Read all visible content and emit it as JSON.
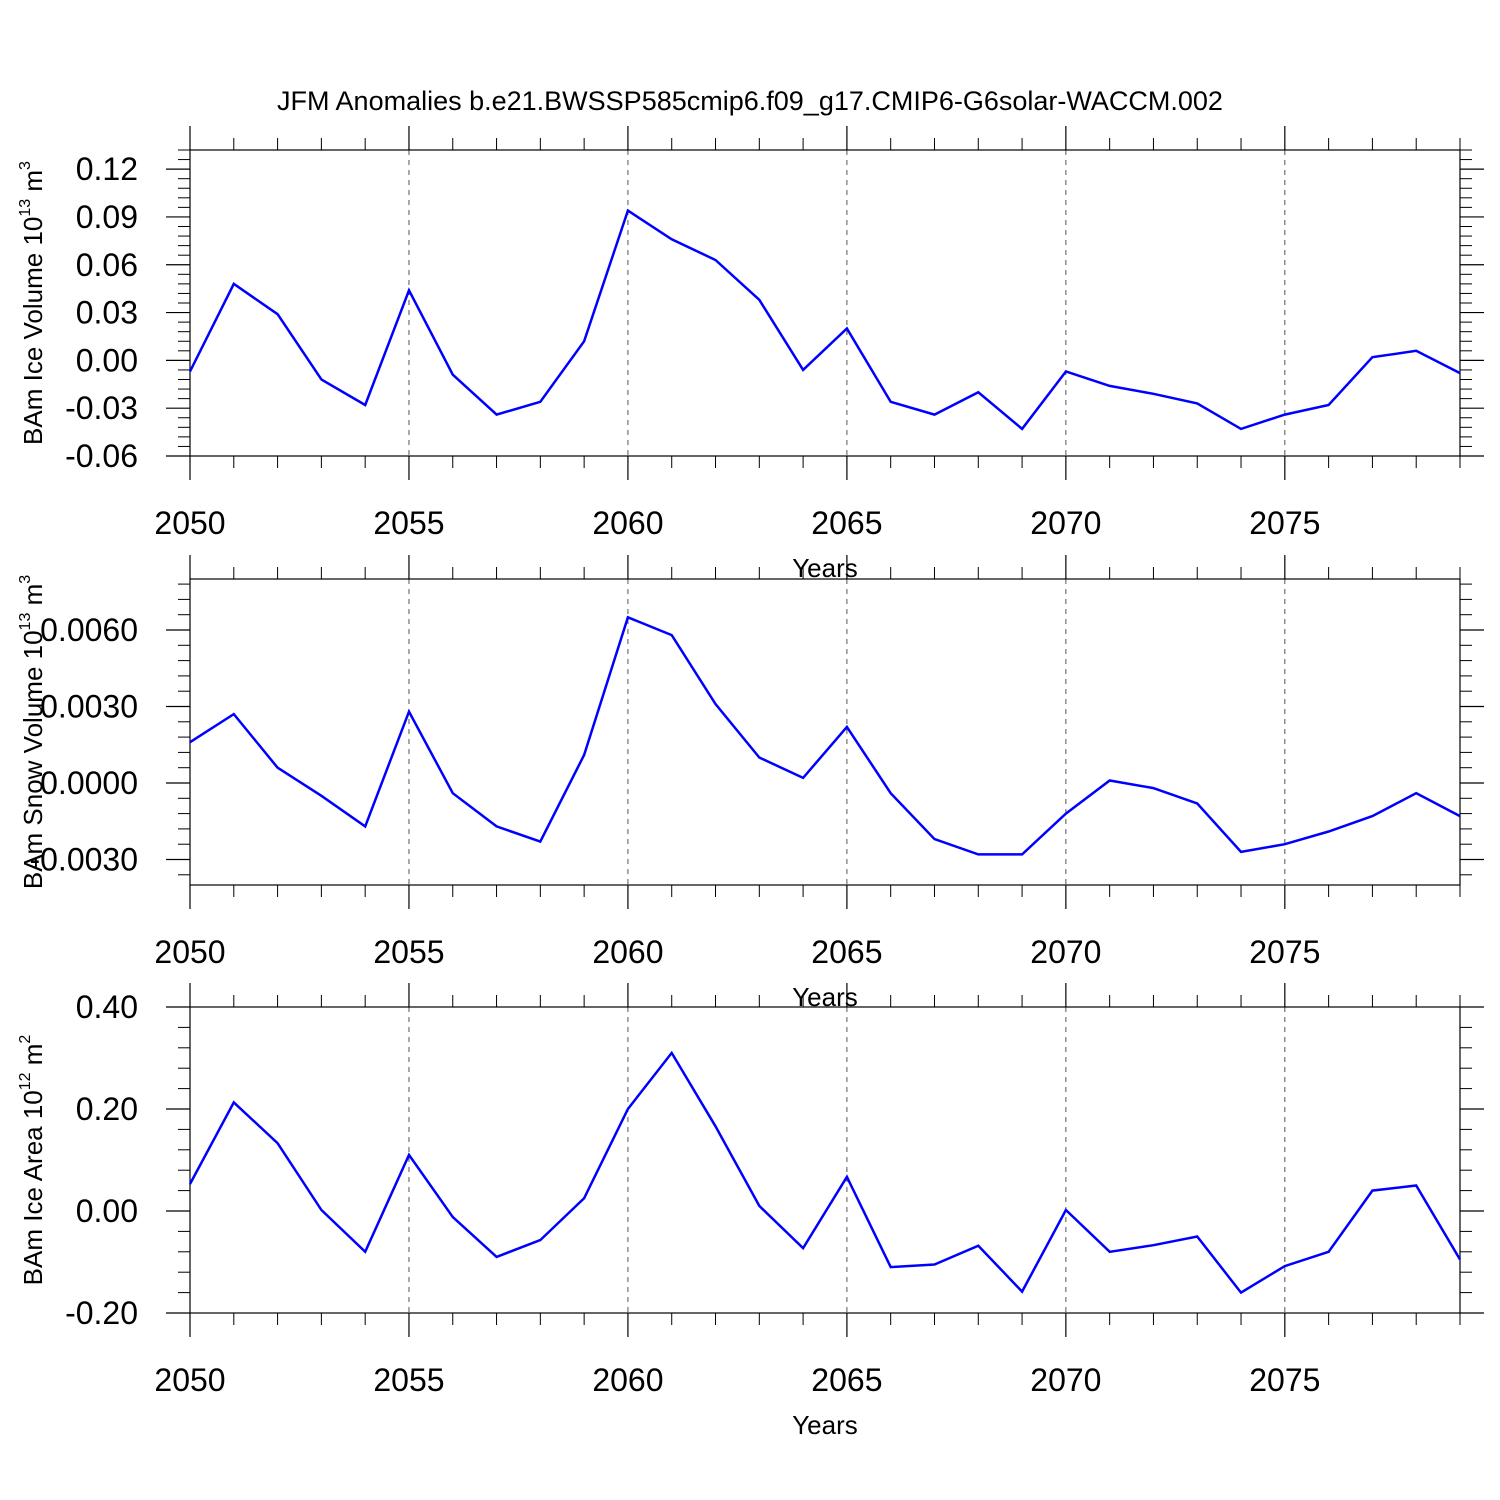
{
  "title": "JFM Anomalies b.e21.BWSSP585cmip6.f09_g17.CMIP6-G6solar-WACCM.002",
  "line_color": "#0000ff",
  "chart_data": [
    {
      "type": "line",
      "name": "ice-volume",
      "ylabel": {
        "main": "BAm Ice Volume 10",
        "exp": "13",
        "unit": " m",
        "unit_exp": "3"
      },
      "xlabel": "Years",
      "xlim": [
        2050,
        2079
      ],
      "xticks": [
        2050,
        2055,
        2060,
        2065,
        2070,
        2075
      ],
      "xtick_labels": [
        "2050",
        "2055",
        "2060",
        "2065",
        "2070",
        "2075"
      ],
      "ylim": [
        -0.06,
        0.132
      ],
      "yticks": [
        -0.06,
        -0.03,
        0.0,
        0.03,
        0.06,
        0.09,
        0.12
      ],
      "ytick_labels": [
        "-0.06",
        "-0.03",
        "0.00",
        "0.03",
        "0.06",
        "0.09",
        "0.12"
      ],
      "x": [
        2050,
        2051,
        2052,
        2053,
        2054,
        2055,
        2056,
        2057,
        2058,
        2059,
        2060,
        2061,
        2062,
        2063,
        2064,
        2065,
        2066,
        2067,
        2068,
        2069,
        2070,
        2071,
        2072,
        2073,
        2074,
        2075,
        2076,
        2077,
        2078,
        2079
      ],
      "values": [
        -0.007,
        0.048,
        0.029,
        -0.012,
        -0.028,
        0.044,
        -0.009,
        -0.034,
        -0.026,
        0.012,
        0.094,
        0.076,
        0.063,
        0.038,
        -0.006,
        0.02,
        -0.026,
        -0.034,
        -0.02,
        -0.043,
        -0.007,
        -0.016,
        -0.021,
        -0.027,
        -0.043,
        -0.034,
        -0.028,
        0.002,
        0.006,
        -0.008
      ]
    },
    {
      "type": "line",
      "name": "snow-volume",
      "ylabel": {
        "main": "BAm Snow Volume 10",
        "exp": "13",
        "unit": " m",
        "unit_exp": "3"
      },
      "xlabel": "Years",
      "xlim": [
        2050,
        2079
      ],
      "xticks": [
        2050,
        2055,
        2060,
        2065,
        2070,
        2075
      ],
      "xtick_labels": [
        "2050",
        "2055",
        "2060",
        "2065",
        "2070",
        "2075"
      ],
      "ylim": [
        -0.004,
        0.008
      ],
      "yticks": [
        -0.003,
        0.0,
        0.003,
        0.006
      ],
      "ytick_labels": [
        "-0.0030",
        "0.0000",
        "0.0030",
        "0.0060"
      ],
      "x": [
        2050,
        2051,
        2052,
        2053,
        2054,
        2055,
        2056,
        2057,
        2058,
        2059,
        2060,
        2061,
        2062,
        2063,
        2064,
        2065,
        2066,
        2067,
        2068,
        2069,
        2070,
        2071,
        2072,
        2073,
        2074,
        2075,
        2076,
        2077,
        2078,
        2079
      ],
      "values": [
        0.0016,
        0.0027,
        0.0006,
        -0.0005,
        -0.0017,
        0.0028,
        -0.0004,
        -0.0017,
        -0.0023,
        0.0011,
        0.0065,
        0.0058,
        0.0031,
        0.001,
        0.0002,
        0.0022,
        -0.0004,
        -0.0022,
        -0.0028,
        -0.0028,
        -0.0012,
        0.0001,
        -0.0002,
        -0.0008,
        -0.0027,
        -0.0024,
        -0.0019,
        -0.0013,
        -0.0004,
        -0.0013
      ]
    },
    {
      "type": "line",
      "name": "ice-area",
      "ylabel": {
        "main": "BAm Ice Area 10",
        "exp": "12",
        "unit": " m",
        "unit_exp": "2"
      },
      "xlabel": "Years",
      "xlim": [
        2050,
        2079
      ],
      "xticks": [
        2050,
        2055,
        2060,
        2065,
        2070,
        2075
      ],
      "xtick_labels": [
        "2050",
        "2055",
        "2060",
        "2065",
        "2070",
        "2075"
      ],
      "ylim": [
        -0.2,
        0.4
      ],
      "yticks": [
        -0.2,
        0.0,
        0.2,
        0.4
      ],
      "ytick_labels": [
        "-0.20",
        "0.00",
        "0.20",
        "0.40"
      ],
      "x": [
        2050,
        2051,
        2052,
        2053,
        2054,
        2055,
        2056,
        2057,
        2058,
        2059,
        2060,
        2061,
        2062,
        2063,
        2064,
        2065,
        2066,
        2067,
        2068,
        2069,
        2070,
        2071,
        2072,
        2073,
        2074,
        2075,
        2076,
        2077,
        2078,
        2079
      ],
      "values": [
        0.053,
        0.213,
        0.133,
        0.002,
        -0.08,
        0.11,
        -0.012,
        -0.09,
        -0.057,
        0.025,
        0.2,
        0.31,
        0.166,
        0.01,
        -0.073,
        0.067,
        -0.11,
        -0.105,
        -0.068,
        -0.158,
        0.002,
        -0.08,
        -0.067,
        -0.05,
        -0.16,
        -0.108,
        -0.08,
        0.04,
        0.05,
        -0.095
      ]
    }
  ]
}
